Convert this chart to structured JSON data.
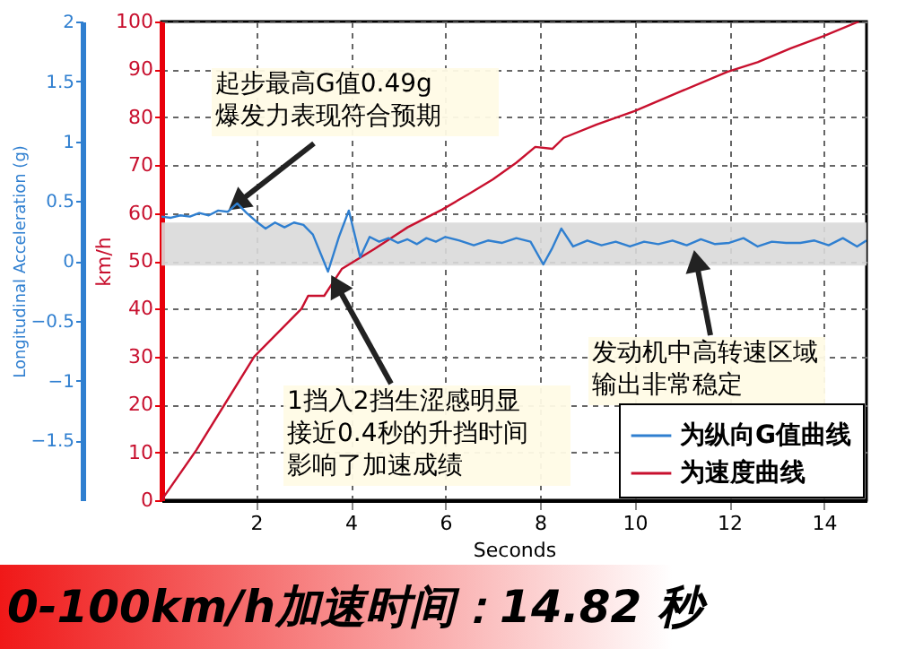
{
  "chart_data": {
    "type": "line",
    "xlabel": "Seconds",
    "ylabel": "km/h",
    "y2label": "Longitudinal Acceleration (g)",
    "xlim": [
      0,
      14.9
    ],
    "xticks": [
      2,
      4,
      6,
      8,
      10,
      12,
      14
    ],
    "ylim": [
      0,
      100
    ],
    "yticks": [
      0,
      10,
      20,
      30,
      40,
      50,
      60,
      70,
      80,
      90,
      100
    ],
    "y2lim": [
      -2,
      2
    ],
    "y2ticks": [
      -1.5,
      -1,
      -0.5,
      0,
      0.5,
      1,
      1.5,
      2
    ],
    "grid": true,
    "legend": "bottom right",
    "line_style": "solid",
    "bands": [
      {
        "axis": "y",
        "from": 49,
        "to": 58,
        "color": "#d9d9d9"
      }
    ],
    "series": [
      {
        "name": "为纵向G值曲线",
        "color": "#2f7fd0",
        "axis": "y2",
        "x": [
          0,
          0.2,
          0.4,
          0.6,
          0.8,
          1.0,
          1.2,
          1.4,
          1.6,
          1.8,
          2.0,
          2.2,
          2.4,
          2.6,
          2.8,
          3.0,
          3.2,
          3.52,
          3.75,
          3.96,
          4.2,
          4.4,
          4.6,
          4.8,
          5.0,
          5.2,
          5.4,
          5.6,
          5.8,
          6.0,
          6.3,
          6.6,
          6.9,
          7.2,
          7.5,
          7.8,
          8.07,
          8.25,
          8.45,
          8.7,
          9.0,
          9.3,
          9.6,
          9.9,
          10.2,
          10.5,
          10.8,
          11.1,
          11.4,
          11.7,
          12.0,
          12.3,
          12.6,
          12.9,
          13.2,
          13.5,
          13.8,
          14.1,
          14.4,
          14.7,
          14.9
        ],
        "values": [
          0.37,
          0.36,
          0.38,
          0.37,
          0.4,
          0.38,
          0.42,
          0.41,
          0.48,
          0.4,
          0.33,
          0.27,
          0.32,
          0.28,
          0.32,
          0.3,
          0.22,
          -0.09,
          0.2,
          0.42,
          0.03,
          0.2,
          0.16,
          0.19,
          0.15,
          0.18,
          0.14,
          0.19,
          0.16,
          0.2,
          0.17,
          0.13,
          0.17,
          0.15,
          0.19,
          0.16,
          -0.03,
          0.1,
          0.27,
          0.12,
          0.17,
          0.13,
          0.16,
          0.12,
          0.16,
          0.14,
          0.17,
          0.13,
          0.18,
          0.14,
          0.15,
          0.19,
          0.12,
          0.16,
          0.15,
          0.15,
          0.17,
          0.13,
          0.19,
          0.12,
          0.17
        ]
      },
      {
        "name": "为速度曲线",
        "color": "#c8102e",
        "x": [
          0,
          0.74,
          1.96,
          2.96,
          3.1,
          3.44,
          3.81,
          4.5,
          5.2,
          5.93,
          6.5,
          7.0,
          7.5,
          7.9,
          8.26,
          8.5,
          9.2,
          10.0,
          11.0,
          11.96,
          12.6,
          13.3,
          14.0,
          14.74
        ],
        "values": [
          0,
          10.5,
          30,
          40,
          42.7,
          42.7,
          48.3,
          52.5,
          57,
          60.7,
          64,
          67,
          70.5,
          73.8,
          73.4,
          75.7,
          78.5,
          81.3,
          85.5,
          89.5,
          91.5,
          94.4,
          97,
          100
        ]
      }
    ],
    "annotations": [
      {
        "text": "起步最高G值0.49g爆发力表现符合预期",
        "x": 1.6,
        "y": 62
      },
      {
        "text": "1挡入2挡生涩感明显接近0.4秒的升挡时间影响了加速成绩",
        "x": 3.7,
        "y": 45
      },
      {
        "text": "发动机中高转速区域输出非常稳定",
        "x": 11.3,
        "y": 50
      },
      "0-100km/h加速时间：14.82 秒"
    ]
  }
}
